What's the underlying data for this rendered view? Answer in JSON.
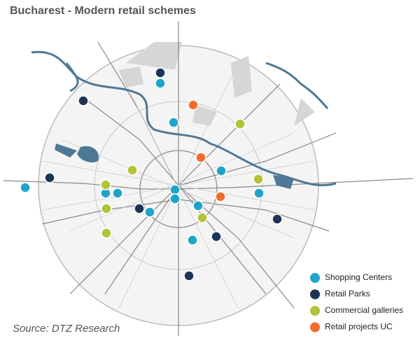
{
  "title": "Bucharest - Modern retail schemes",
  "source": "Source: DTZ Research",
  "legend": [
    {
      "name": "Shopping Centers",
      "color": "#1fa4c9"
    },
    {
      "name": "Retail Parks",
      "color": "#1c3557"
    },
    {
      "name": "Commercial galleries",
      "color": "#b3c237"
    },
    {
      "name": "Retail projects UC",
      "color": "#f26d2d"
    }
  ]
}
